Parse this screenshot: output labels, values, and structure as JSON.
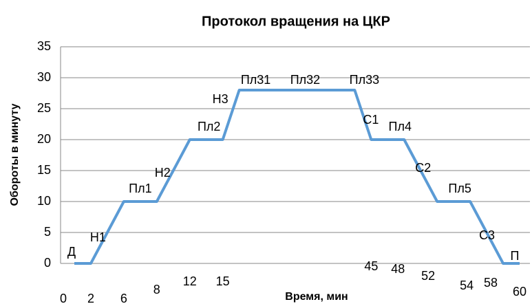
{
  "chart_data": {
    "type": "line",
    "title": "Протокол вращения на ЦКР",
    "x_label": "Время, мин",
    "y_label": "Обороты в минуту",
    "categories": [
      "0",
      "2",
      null,
      "6",
      null,
      "8",
      null,
      "12",
      null,
      "15",
      null,
      null,
      null,
      null,
      null,
      null,
      null,
      null,
      "45",
      null,
      "48",
      null,
      "52",
      null,
      "54",
      null,
      "58",
      "60"
    ],
    "values": [
      0,
      0,
      5,
      10,
      10,
      10,
      15,
      20,
      20,
      20,
      28,
      28,
      28,
      28,
      28,
      28,
      28,
      28,
      20,
      20,
      20,
      15,
      10,
      10,
      10,
      5,
      0,
      0
    ],
    "point_labels": [
      "Д",
      null,
      "Н1",
      null,
      "Пл1",
      null,
      "Н2",
      null,
      "Пл2",
      null,
      "Н3",
      "Пл31",
      null,
      null,
      "Пл32",
      null,
      null,
      "Пл33",
      "С1",
      null,
      "Пл4",
      "С2",
      null,
      null,
      "Пл5",
      "С3",
      null,
      "П"
    ],
    "color": "#5b9bd5",
    "ylim": [
      0,
      35
    ],
    "yticks": [
      0,
      5,
      10,
      15,
      20,
      25,
      30,
      35
    ],
    "grid": true
  }
}
